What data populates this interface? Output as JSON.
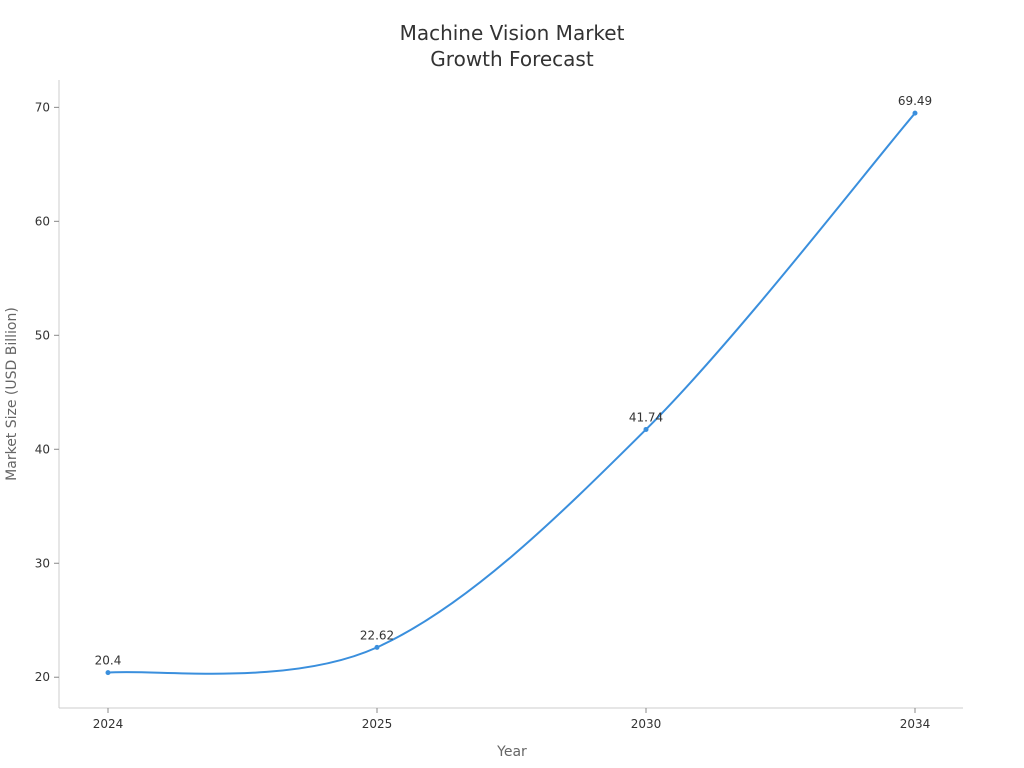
{
  "chart_data": {
    "type": "line",
    "title_lines": [
      "Machine Vision Market",
      "Growth Forecast"
    ],
    "xlabel": "Year",
    "ylabel": "Market Size (USD Billion)",
    "categories": [
      "2024",
      "2025",
      "2030",
      "2034"
    ],
    "series": [
      {
        "values": [
          20.4,
          22.62,
          41.74,
          69.49
        ],
        "labels": [
          "20.4",
          "22.62",
          "41.74",
          "69.49"
        ]
      }
    ],
    "yticks": [
      "20",
      "30",
      "40",
      "50",
      "60",
      "70"
    ],
    "ytick_values": [
      20,
      30,
      40,
      50,
      60,
      70
    ],
    "ylim": [
      17.3,
      72.4
    ],
    "grid": false,
    "colors": {
      "line": "#3a8fdd",
      "axis": "#cccccc",
      "tick_text": "#333333",
      "axis_label": "#666666"
    }
  }
}
